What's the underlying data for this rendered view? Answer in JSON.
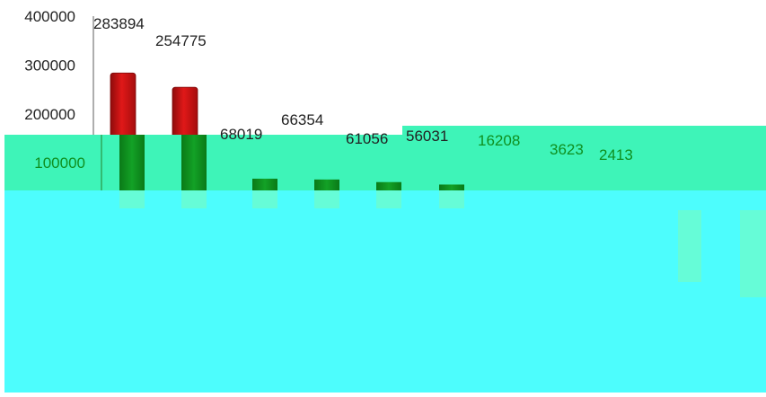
{
  "chart_data": {
    "type": "bar",
    "title": "",
    "xlabel": "",
    "ylabel": "",
    "ylim": [
      0,
      400000
    ],
    "yticks": [
      100000,
      200000,
      300000,
      400000
    ],
    "ytick_labels": [
      "100000",
      "200000",
      "300000",
      "400000"
    ],
    "grid": false,
    "legend": false,
    "bar_color": "#cc1111",
    "values": [
      283894,
      254775,
      68019,
      66354,
      61056,
      56031,
      16208,
      3623,
      2413
    ],
    "value_labels": [
      "283894",
      "254775",
      "68019",
      "66354",
      "61056",
      "56031",
      "16208",
      "3623",
      "2413"
    ]
  },
  "colors": {
    "overlay_top": "#3ef4b8",
    "overlay_main": "#4dfdfd",
    "overlay_bar_green": "#0f8f1f",
    "overlay_text_green": "#0f8f1f",
    "overlay_faint_bar": "#66fcd7"
  }
}
